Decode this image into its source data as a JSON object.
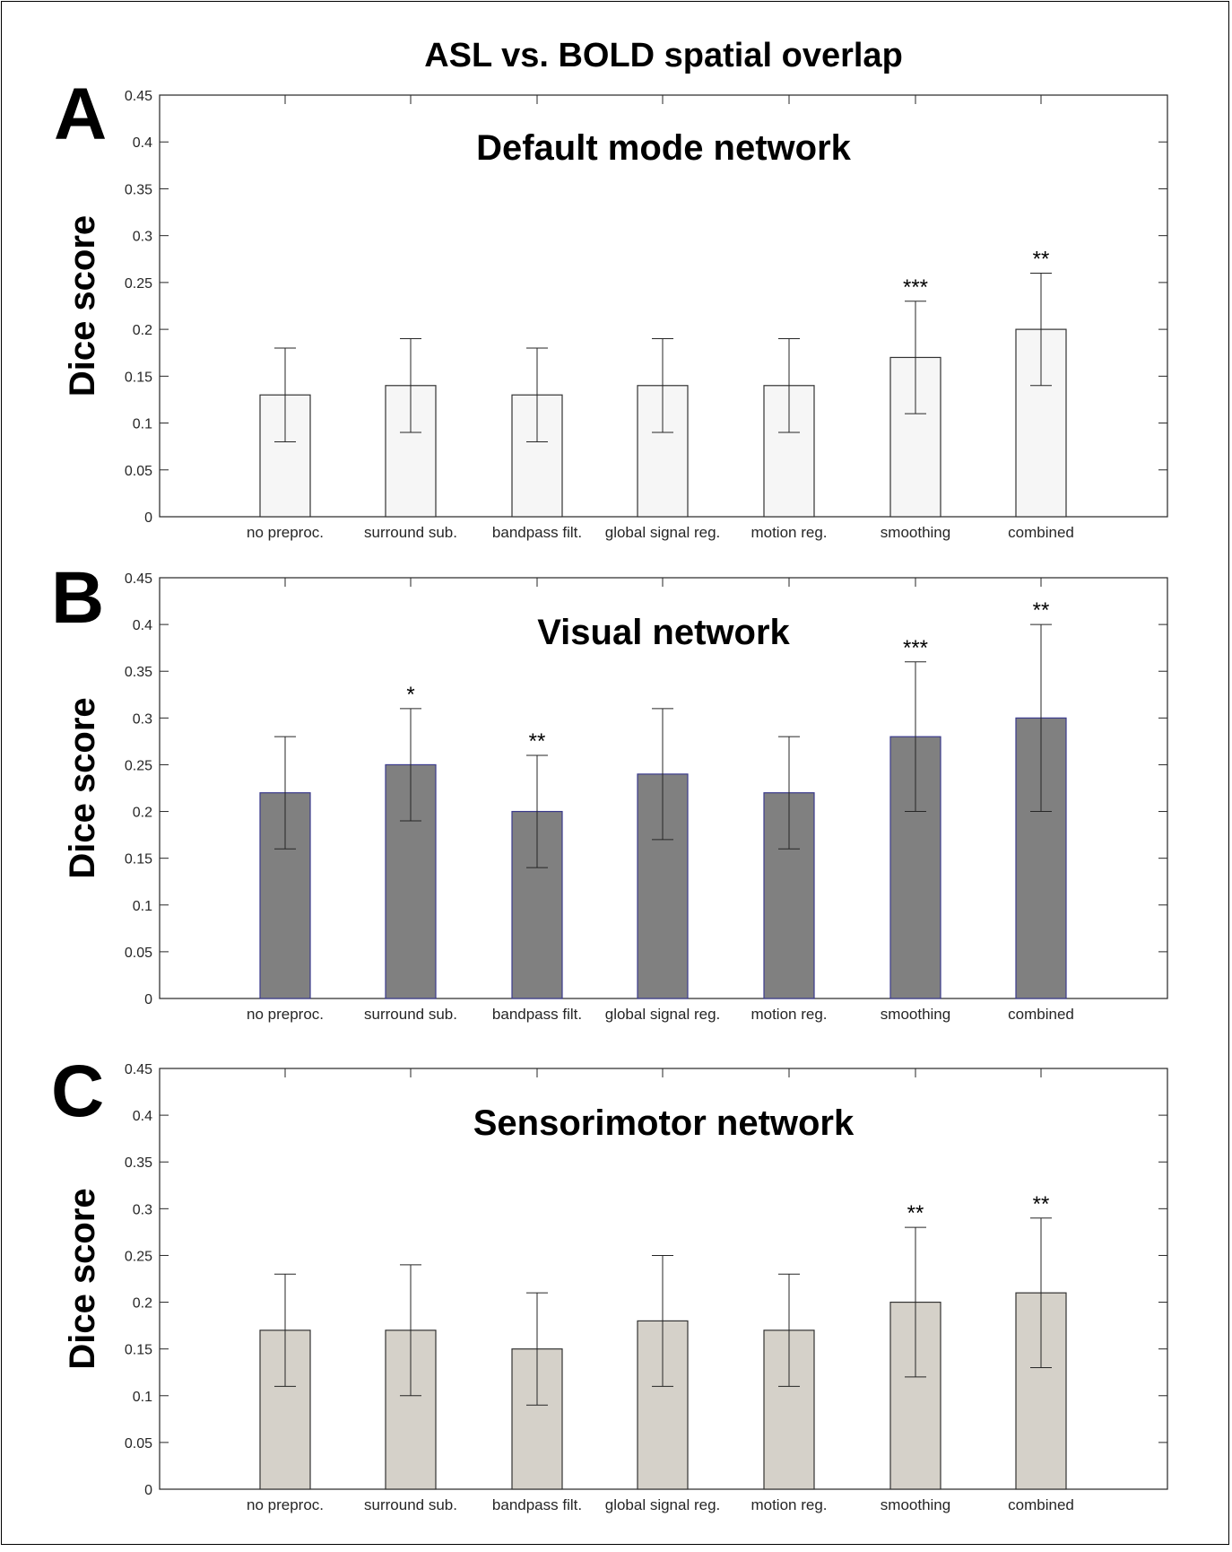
{
  "figure": {
    "title": "ASL vs. BOLD spatial overlap"
  },
  "chart_data": [
    {
      "type": "bar",
      "panel_label": "A",
      "title": "Default mode network",
      "xlabel": "",
      "ylabel": "Dice score",
      "ylim": [
        0,
        0.45
      ],
      "yticks": [
        "0",
        "0.05",
        "0.1",
        "0.15",
        "0.2",
        "0.25",
        "0.3",
        "0.35",
        "0.4",
        "0.45"
      ],
      "categories": [
        "no preproc.",
        "surround sub.",
        "bandpass filt.",
        "global signal reg.",
        "motion reg.",
        "smoothing",
        "combined"
      ],
      "values": [
        0.13,
        0.14,
        0.13,
        0.14,
        0.14,
        0.17,
        0.2
      ],
      "error_low": [
        0.08,
        0.09,
        0.08,
        0.09,
        0.09,
        0.11,
        0.14
      ],
      "error_high": [
        0.18,
        0.19,
        0.18,
        0.19,
        0.19,
        0.23,
        0.26
      ],
      "significance": [
        "",
        "",
        "",
        "",
        "",
        "***",
        "**"
      ],
      "bar_color": "#f6f6f6",
      "edge_color": "#333333",
      "grid": false
    },
    {
      "type": "bar",
      "panel_label": "B",
      "title": "Visual network",
      "xlabel": "",
      "ylabel": "Dice score",
      "ylim": [
        0,
        0.45
      ],
      "yticks": [
        "0",
        "0.05",
        "0.1",
        "0.15",
        "0.2",
        "0.25",
        "0.3",
        "0.35",
        "0.4",
        "0.45"
      ],
      "categories": [
        "no preproc.",
        "surround sub.",
        "bandpass filt.",
        "global signal reg.",
        "motion reg.",
        "smoothing",
        "combined"
      ],
      "values": [
        0.22,
        0.25,
        0.2,
        0.24,
        0.22,
        0.28,
        0.3
      ],
      "error_low": [
        0.16,
        0.19,
        0.14,
        0.17,
        0.16,
        0.2,
        0.2
      ],
      "error_high": [
        0.28,
        0.31,
        0.26,
        0.31,
        0.28,
        0.36,
        0.4
      ],
      "significance": [
        "",
        "*",
        "**",
        "",
        "",
        "***",
        "**"
      ],
      "bar_color": "#808080",
      "edge_color": "#3a3a8c",
      "grid": false
    },
    {
      "type": "bar",
      "panel_label": "C",
      "title": "Sensorimotor network",
      "xlabel": "",
      "ylabel": "Dice score",
      "ylim": [
        0,
        0.45
      ],
      "yticks": [
        "0",
        "0.05",
        "0.1",
        "0.15",
        "0.2",
        "0.25",
        "0.3",
        "0.35",
        "0.4",
        "0.45"
      ],
      "categories": [
        "no preproc.",
        "surround sub.",
        "bandpass filt.",
        "global signal reg.",
        "motion reg.",
        "smoothing",
        "combined"
      ],
      "values": [
        0.17,
        0.17,
        0.15,
        0.18,
        0.17,
        0.2,
        0.21
      ],
      "error_low": [
        0.11,
        0.1,
        0.09,
        0.11,
        0.11,
        0.12,
        0.13
      ],
      "error_high": [
        0.23,
        0.24,
        0.21,
        0.25,
        0.23,
        0.28,
        0.29
      ],
      "significance": [
        "",
        "",
        "",
        "",
        "",
        "**",
        "**"
      ],
      "bar_color": "#d5d1c9",
      "edge_color": "#333333",
      "grid": false
    }
  ]
}
